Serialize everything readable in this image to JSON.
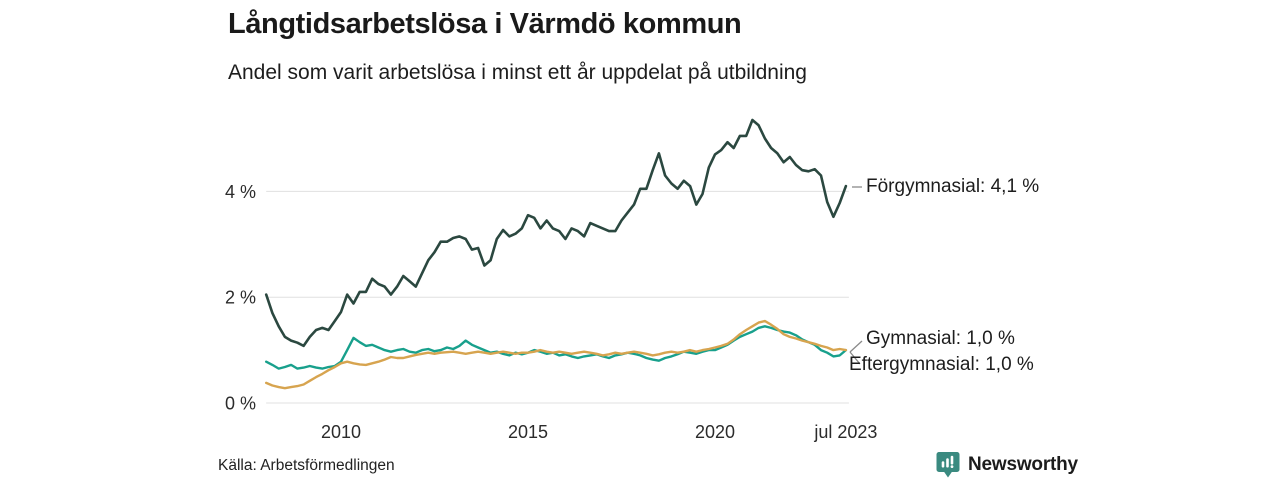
{
  "header": {
    "title": "Långtidsarbetslösa i Värmdö kommun",
    "subtitle": "Andel som varit arbetslösa i minst ett år uppdelat på utbildning"
  },
  "footer": {
    "source": "Källa: Arbetsförmedlingen",
    "brand": "Newsworthy",
    "brand_color": "#2e7f77"
  },
  "chart_data": {
    "type": "line",
    "title": "Långtidsarbetslösa i Värmdö kommun",
    "subtitle": "Andel som varit arbetslösa i minst ett år uppdelat på utbildning",
    "unit": "%",
    "grid": "horizontal",
    "grid_color": "#e0e0e0",
    "tick_text_color": "#2b2b2b",
    "connector_color": "#8a8a8a",
    "x_start": 2008.0,
    "x_step_years": 0.1666667,
    "x_range": [
      2008.0,
      2023.58
    ],
    "y_range": [
      0,
      5.6
    ],
    "x_ticks": [
      {
        "value": 2010,
        "label": "2010"
      },
      {
        "value": 2015,
        "label": "2015"
      },
      {
        "value": 2020,
        "label": "2020"
      },
      {
        "value": 2023.5,
        "label": "jul 2023"
      }
    ],
    "y_ticks": [
      {
        "value": 0,
        "label": "0 %"
      },
      {
        "value": 2,
        "label": "2 %"
      },
      {
        "value": 4,
        "label": "4 %"
      }
    ],
    "legend_position": "end-of-line",
    "series": [
      {
        "name": "Förgymnasial",
        "end_label": "Förgymnasial: 4,1 %",
        "end_value": "4,1 %",
        "color": "#2b4840",
        "stroke_width": 2.6,
        "values": [
          2.05,
          1.7,
          1.45,
          1.25,
          1.18,
          1.14,
          1.08,
          1.25,
          1.38,
          1.42,
          1.38,
          1.55,
          1.72,
          2.05,
          1.88,
          2.1,
          2.1,
          2.35,
          2.25,
          2.2,
          2.05,
          2.2,
          2.4,
          2.3,
          2.2,
          2.45,
          2.7,
          2.85,
          3.05,
          3.05,
          3.12,
          3.15,
          3.1,
          2.9,
          2.93,
          2.6,
          2.7,
          3.1,
          3.27,
          3.15,
          3.2,
          3.3,
          3.55,
          3.5,
          3.3,
          3.45,
          3.3,
          3.25,
          3.1,
          3.3,
          3.25,
          3.15,
          3.4,
          3.35,
          3.3,
          3.25,
          3.25,
          3.45,
          3.6,
          3.75,
          4.05,
          4.05,
          4.4,
          4.72,
          4.3,
          4.15,
          4.05,
          4.2,
          4.1,
          3.75,
          3.95,
          4.45,
          4.7,
          4.78,
          4.93,
          4.82,
          5.05,
          5.05,
          5.35,
          5.25,
          5.0,
          4.82,
          4.72,
          4.55,
          4.65,
          4.5,
          4.4,
          4.38,
          4.42,
          4.3,
          3.8,
          3.52,
          3.78,
          4.1
        ]
      },
      {
        "name": "Gymnasial",
        "end_label": "Gymnasial: 1,0 %",
        "end_value": "1,0 %",
        "color": "#18a08c",
        "stroke_width": 2.4,
        "values": [
          0.78,
          0.72,
          0.65,
          0.68,
          0.72,
          0.65,
          0.67,
          0.7,
          0.67,
          0.65,
          0.68,
          0.7,
          0.78,
          1.0,
          1.23,
          1.15,
          1.08,
          1.1,
          1.05,
          1.0,
          0.97,
          1.0,
          1.02,
          0.97,
          0.95,
          1.0,
          1.02,
          0.98,
          1.0,
          1.05,
          1.02,
          1.08,
          1.18,
          1.1,
          1.05,
          1.0,
          0.95,
          0.97,
          0.93,
          0.9,
          0.95,
          0.92,
          0.95,
          1.0,
          0.97,
          0.93,
          0.95,
          0.9,
          0.92,
          0.88,
          0.85,
          0.88,
          0.9,
          0.92,
          0.88,
          0.85,
          0.9,
          0.92,
          0.95,
          0.93,
          0.9,
          0.85,
          0.82,
          0.8,
          0.85,
          0.88,
          0.92,
          0.97,
          0.95,
          0.93,
          0.97,
          1.0,
          1.0,
          1.05,
          1.1,
          1.18,
          1.25,
          1.3,
          1.35,
          1.42,
          1.45,
          1.42,
          1.38,
          1.35,
          1.33,
          1.28,
          1.2,
          1.15,
          1.1,
          1.0,
          0.95,
          0.88,
          0.9,
          1.0
        ]
      },
      {
        "name": "Eftergymnasial",
        "end_label": "Eftergymnasial: 1,0 %",
        "end_value": "1,0 %",
        "color": "#d7a44f",
        "stroke_width": 2.4,
        "values": [
          0.38,
          0.33,
          0.3,
          0.28,
          0.3,
          0.32,
          0.35,
          0.42,
          0.49,
          0.55,
          0.62,
          0.68,
          0.75,
          0.78,
          0.75,
          0.73,
          0.72,
          0.75,
          0.78,
          0.82,
          0.87,
          0.85,
          0.85,
          0.88,
          0.91,
          0.93,
          0.95,
          0.93,
          0.95,
          0.96,
          0.97,
          0.95,
          0.93,
          0.95,
          0.97,
          0.95,
          0.93,
          0.95,
          0.97,
          0.95,
          0.93,
          0.95,
          0.95,
          0.97,
          1.0,
          0.97,
          0.95,
          0.97,
          0.95,
          0.93,
          0.95,
          0.97,
          0.95,
          0.93,
          0.9,
          0.92,
          0.95,
          0.93,
          0.95,
          0.97,
          0.95,
          0.93,
          0.9,
          0.92,
          0.95,
          0.97,
          0.95,
          0.97,
          1.0,
          0.97,
          1.0,
          1.02,
          1.05,
          1.08,
          1.12,
          1.2,
          1.3,
          1.38,
          1.45,
          1.52,
          1.55,
          1.48,
          1.4,
          1.3,
          1.25,
          1.22,
          1.18,
          1.15,
          1.12,
          1.08,
          1.05,
          1.0,
          1.02,
          1.0
        ]
      }
    ]
  }
}
